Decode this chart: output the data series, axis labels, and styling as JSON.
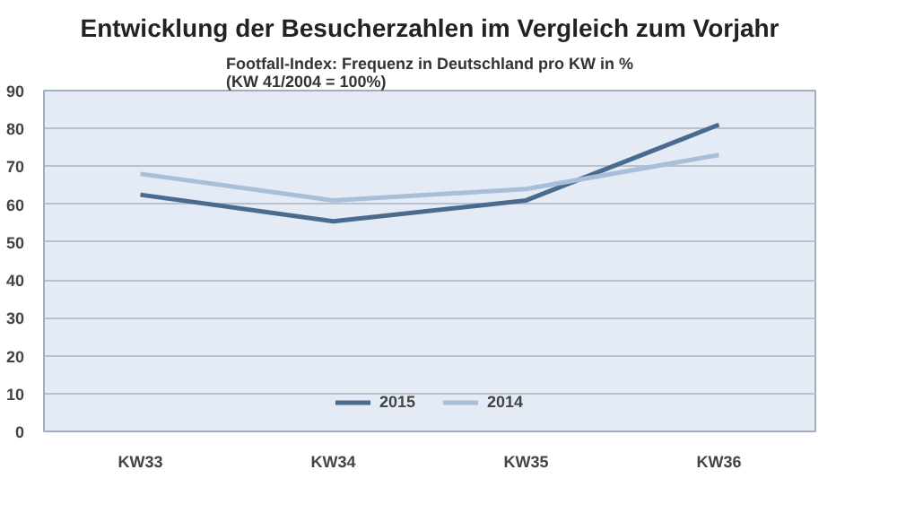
{
  "chart_data": {
    "type": "line",
    "title": "Entwicklung der Besucherzahlen im Vergleich zum Vorjahr",
    "subtitle": "Footfall-Index: Frequenz in Deutschland pro KW in %\n(KW 41/2004 = 100%)",
    "categories": [
      "KW33",
      "KW34",
      "KW35",
      "KW36"
    ],
    "series": [
      {
        "name": "2015",
        "color": "#4a6a90",
        "values": [
          62.5,
          55.5,
          61,
          81
        ]
      },
      {
        "name": "2014",
        "color": "#a9bfd9",
        "values": [
          68,
          61,
          64,
          73
        ]
      }
    ],
    "ylim": [
      0,
      90
    ],
    "yticks": [
      0,
      10,
      20,
      30,
      40,
      50,
      60,
      70,
      80,
      90
    ],
    "grid": "y",
    "legend": "bottom",
    "marker": "none",
    "line_style": "solid"
  }
}
